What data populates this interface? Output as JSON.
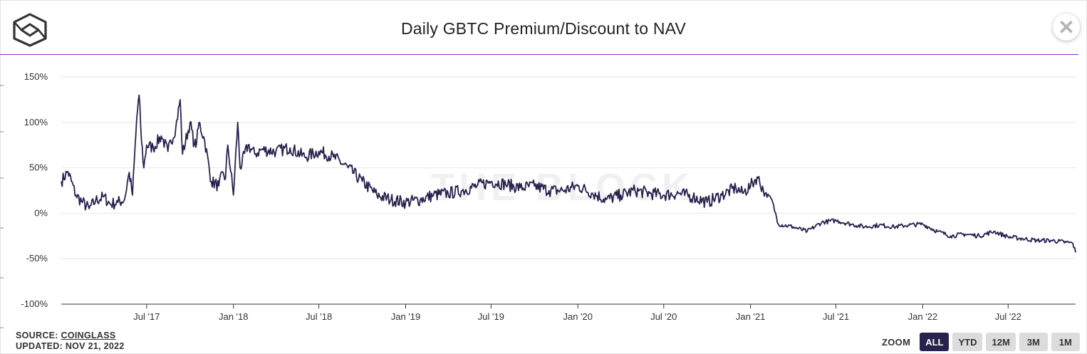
{
  "header": {
    "title": "Daily GBTC Premium/Discount to NAV",
    "logo_icon": "the-block-logo-icon",
    "close_icon": "close-icon",
    "accent": "#8e2bd6"
  },
  "watermark": "THE BLOCK",
  "footer": {
    "source_label": "SOURCE: ",
    "source_link": "COINGLASS",
    "updated": "UPDATED: NOV 21, 2022"
  },
  "zoom": {
    "label": "ZOOM",
    "buttons": [
      "ALL",
      "YTD",
      "12M",
      "3M",
      "1M"
    ],
    "active": "ALL"
  },
  "chart_data": {
    "type": "line",
    "title": "Daily GBTC Premium/Discount to NAV",
    "xlabel": "",
    "ylabel": "",
    "y_tick_labels": [
      "150%",
      "100%",
      "50%",
      "0%",
      "-50%",
      "-100%"
    ],
    "y_ticks": [
      150,
      100,
      50,
      0,
      -50,
      -100
    ],
    "ylim": [
      -100,
      150
    ],
    "x_tick_labels": [
      "Jul '17",
      "Jan '18",
      "Jul '18",
      "Jan '19",
      "Jul '19",
      "Jan '20",
      "Jul '20",
      "Jan '21",
      "Jul '21",
      "Jan '22",
      "Jul '22"
    ],
    "x_ticks": [
      "2017-07-01",
      "2018-01-01",
      "2018-07-01",
      "2019-01-01",
      "2019-07-01",
      "2020-01-01",
      "2020-07-01",
      "2021-01-01",
      "2021-07-01",
      "2022-01-01",
      "2022-07-01"
    ],
    "x_range": [
      "2017-01-01",
      "2022-11-21"
    ],
    "grid": "horizontal",
    "line_color": "#28224e",
    "series": [
      {
        "x": [
          "2017-01-01",
          "2017-01-15",
          "2017-02-01",
          "2017-02-15",
          "2017-03-01",
          "2017-03-15",
          "2017-04-01",
          "2017-04-15",
          "2017-05-01",
          "2017-05-15",
          "2017-05-25",
          "2017-06-01",
          "2017-06-10",
          "2017-06-15",
          "2017-06-20",
          "2017-06-25",
          "2017-07-01",
          "2017-07-15",
          "2017-08-01",
          "2017-08-15",
          "2017-09-01",
          "2017-09-10",
          "2017-09-15",
          "2017-10-01",
          "2017-10-10",
          "2017-10-15",
          "2017-10-20",
          "2017-11-01",
          "2017-11-15",
          "2017-12-01",
          "2017-12-10",
          "2017-12-15",
          "2017-12-20",
          "2018-01-01",
          "2018-01-10",
          "2018-01-15",
          "2018-02-01",
          "2018-02-15",
          "2018-03-01",
          "2018-04-01",
          "2018-05-01",
          "2018-06-01",
          "2018-07-01",
          "2018-08-01",
          "2018-09-01",
          "2018-10-01",
          "2018-11-01",
          "2018-12-01",
          "2019-01-01",
          "2019-02-01",
          "2019-03-01",
          "2019-04-01",
          "2019-05-01",
          "2019-06-01",
          "2019-07-01",
          "2019-08-01",
          "2019-09-01",
          "2019-10-01",
          "2019-11-01",
          "2019-12-01",
          "2020-01-01",
          "2020-02-01",
          "2020-03-01",
          "2020-04-01",
          "2020-05-01",
          "2020-06-01",
          "2020-07-01",
          "2020-08-01",
          "2020-09-01",
          "2020-10-01",
          "2020-11-01",
          "2020-12-01",
          "2020-12-15",
          "2021-01-01",
          "2021-01-15",
          "2021-02-01",
          "2021-02-15",
          "2021-03-01",
          "2021-04-01",
          "2021-05-01",
          "2021-06-01",
          "2021-07-01",
          "2021-08-01",
          "2021-09-01",
          "2021-10-01",
          "2021-11-01",
          "2021-12-01",
          "2022-01-01",
          "2022-02-01",
          "2022-03-01",
          "2022-04-01",
          "2022-05-01",
          "2022-06-01",
          "2022-07-01",
          "2022-08-01",
          "2022-09-01",
          "2022-10-01",
          "2022-11-01",
          "2022-11-15",
          "2022-11-21"
        ],
        "values": [
          35,
          46,
          20,
          12,
          5,
          14,
          18,
          10,
          12,
          15,
          45,
          20,
          105,
          130,
          80,
          50,
          75,
          72,
          85,
          68,
          95,
          125,
          65,
          100,
          75,
          78,
          100,
          80,
          35,
          30,
          45,
          38,
          75,
          20,
          100,
          50,
          75,
          65,
          70,
          68,
          72,
          62,
          68,
          62,
          50,
          35,
          20,
          15,
          12,
          15,
          20,
          22,
          25,
          30,
          35,
          32,
          28,
          30,
          25,
          25,
          30,
          22,
          15,
          20,
          25,
          22,
          20,
          22,
          18,
          12,
          20,
          28,
          22,
          30,
          40,
          22,
          15,
          -12,
          -15,
          -20,
          -10,
          -8,
          -12,
          -15,
          -13,
          -15,
          -13,
          -12,
          -20,
          -25,
          -23,
          -25,
          -20,
          -26,
          -28,
          -30,
          -30,
          -32,
          -33,
          -43
        ]
      }
    ]
  }
}
